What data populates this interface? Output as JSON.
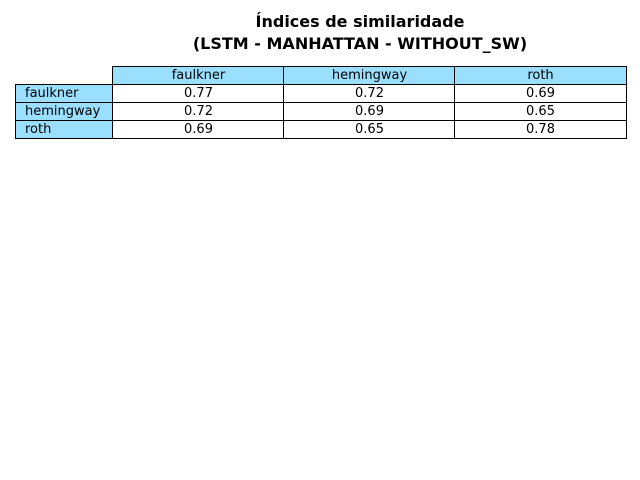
{
  "chart_data": {
    "type": "table",
    "title_lines": [
      "Índices de similaridade",
      "(LSTM - MANHATTAN - WITHOUT_SW)"
    ],
    "columns": [
      "faulkner",
      "hemingway",
      "roth"
    ],
    "rows": [
      {
        "label": "faulkner",
        "values": [
          "0.77",
          "0.72",
          "0.69"
        ]
      },
      {
        "label": "hemingway",
        "values": [
          "0.72",
          "0.69",
          "0.65"
        ]
      },
      {
        "label": "roth",
        "values": [
          "0.69",
          "0.65",
          "0.78"
        ]
      }
    ],
    "header_color": "#9BDFFF",
    "cell_color": "#FFFFFF"
  }
}
